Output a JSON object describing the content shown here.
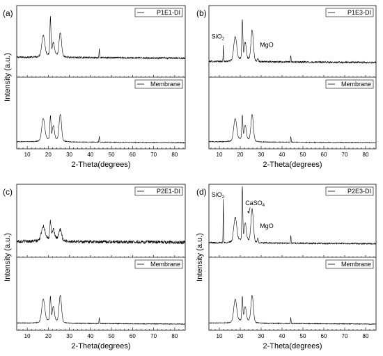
{
  "chart_data": [
    {
      "type": "line",
      "panel_label": "(a)",
      "xlabel": "2-Theta(degrees)",
      "ylabel": "Intensity (a.u.)",
      "xlim": [
        5,
        85
      ],
      "xticks": [
        10,
        20,
        30,
        40,
        50,
        60,
        70,
        80
      ],
      "series": [
        {
          "name": "P1E1-DI",
          "baseline": 0.28,
          "scale": 1.0,
          "noise": 0.012,
          "peaks": [
            [
              17.6,
              0.28,
              1.0
            ],
            [
              21.0,
              0.52,
              0.35
            ],
            [
              22.4,
              0.16,
              0.7
            ],
            [
              25.7,
              0.32,
              0.8
            ],
            [
              44.2,
              0.12,
              0.2
            ]
          ]
        },
        {
          "name": "Membrane",
          "baseline": 0.1,
          "scale": 1.0,
          "noise": 0.005,
          "peaks": [
            [
              17.6,
              0.3,
              1.0
            ],
            [
              21.0,
              0.32,
              0.35
            ],
            [
              22.4,
              0.18,
              0.7
            ],
            [
              25.7,
              0.36,
              0.8
            ],
            [
              44.2,
              0.08,
              0.2
            ]
          ]
        }
      ],
      "annotations": []
    },
    {
      "type": "line",
      "panel_label": "(b)",
      "xlabel": "2-Theta(degrees)",
      "ylabel": "",
      "xlim": [
        5,
        85
      ],
      "xticks": [
        10,
        20,
        30,
        40,
        50,
        60,
        70,
        80
      ],
      "series": [
        {
          "name": "P1E3-DI",
          "baseline": 0.22,
          "scale": 1.0,
          "noise": 0.012,
          "peaks": [
            [
              11.9,
              0.22,
              0.15
            ],
            [
              17.6,
              0.32,
              1.0
            ],
            [
              21.0,
              0.54,
              0.35
            ],
            [
              22.4,
              0.22,
              0.7
            ],
            [
              25.7,
              0.42,
              0.8
            ],
            [
              28.4,
              0.05,
              0.3
            ],
            [
              44.2,
              0.1,
              0.2
            ]
          ]
        },
        {
          "name": "Membrane",
          "baseline": 0.1,
          "scale": 1.0,
          "noise": 0.005,
          "peaks": [
            [
              17.6,
              0.3,
              1.0
            ],
            [
              21.0,
              0.32,
              0.35
            ],
            [
              22.4,
              0.18,
              0.7
            ],
            [
              25.7,
              0.36,
              0.8
            ],
            [
              44.2,
              0.08,
              0.2
            ]
          ]
        }
      ],
      "annotations": [
        {
          "text": "SiO2",
          "base": "SiO",
          "sub": "2",
          "x": 11.9
        },
        {
          "text": "MgO",
          "x": 28.4
        }
      ]
    },
    {
      "type": "line",
      "panel_label": "(c)",
      "xlabel": "2-Theta(degrees)",
      "ylabel": "Intensity (a.u.)",
      "xlim": [
        5,
        85
      ],
      "xticks": [
        10,
        20,
        30,
        40,
        50,
        60,
        70,
        80
      ],
      "series": [
        {
          "name": "P2E1-DI",
          "baseline": 0.22,
          "scale": 1.0,
          "noise": 0.022,
          "peaks": [
            [
              17.6,
              0.18,
              1.2
            ],
            [
              21.0,
              0.22,
              0.4
            ],
            [
              22.4,
              0.12,
              0.8
            ],
            [
              25.7,
              0.14,
              0.9
            ]
          ]
        },
        {
          "name": "Membrane",
          "baseline": 0.1,
          "scale": 1.0,
          "noise": 0.005,
          "peaks": [
            [
              17.6,
              0.3,
              1.0
            ],
            [
              21.0,
              0.32,
              0.35
            ],
            [
              22.4,
              0.18,
              0.7
            ],
            [
              25.7,
              0.36,
              0.8
            ],
            [
              44.2,
              0.08,
              0.2
            ]
          ]
        }
      ],
      "annotations": []
    },
    {
      "type": "line",
      "panel_label": "(d)",
      "xlabel": "2-Theta(degrees)",
      "ylabel": "Intensity (a.u.)",
      "xlim": [
        5,
        85
      ],
      "xticks": [
        10,
        20,
        30,
        40,
        50,
        60,
        70,
        80
      ],
      "series": [
        {
          "name": "P2E3-DI",
          "baseline": 0.2,
          "scale": 1.0,
          "noise": 0.01,
          "peaks": [
            [
              11.9,
              0.6,
              0.15
            ],
            [
              17.6,
              0.32,
              1.0
            ],
            [
              21.0,
              0.72,
              0.3
            ],
            [
              22.4,
              0.22,
              0.7
            ],
            [
              25.7,
              0.44,
              0.8
            ],
            [
              28.4,
              0.06,
              0.3
            ],
            [
              44.2,
              0.1,
              0.2
            ]
          ]
        },
        {
          "name": "Membrane",
          "baseline": 0.1,
          "scale": 1.0,
          "noise": 0.005,
          "peaks": [
            [
              17.6,
              0.3,
              1.0
            ],
            [
              21.0,
              0.32,
              0.35
            ],
            [
              22.4,
              0.18,
              0.7
            ],
            [
              25.7,
              0.36,
              0.8
            ],
            [
              44.2,
              0.08,
              0.2
            ]
          ]
        }
      ],
      "annotations": [
        {
          "text": "SiO2",
          "base": "SiO",
          "sub": "2",
          "x": 11.9
        },
        {
          "text": "CaSO4",
          "base": "CaSO",
          "sub": "4",
          "x": 24.4
        },
        {
          "text": "MgO",
          "x": 28.4
        }
      ]
    }
  ]
}
